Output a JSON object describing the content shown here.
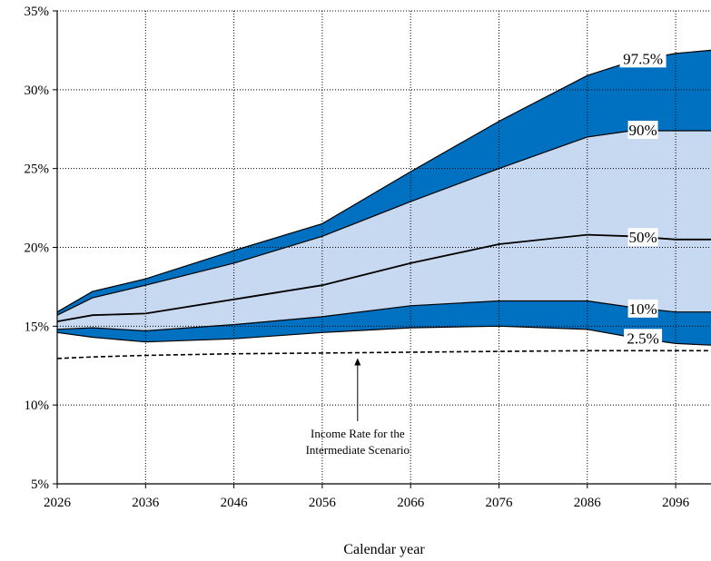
{
  "chart_data": {
    "type": "area",
    "xlabel": "Calendar year",
    "ylabel": "",
    "xlim": [
      2026,
      2100
    ],
    "ylim": [
      5,
      35
    ],
    "x_ticks": [
      2026,
      2036,
      2046,
      2056,
      2066,
      2076,
      2086,
      2096
    ],
    "x_tick_labels": [
      "2026",
      "2036",
      "2046",
      "2056",
      "2066",
      "2076",
      "2086",
      "2096"
    ],
    "y_ticks": [
      5,
      10,
      15,
      20,
      25,
      30,
      35
    ],
    "y_tick_labels": [
      "5%",
      "10%",
      "15%",
      "20%",
      "25%",
      "30%",
      "35%"
    ],
    "grid": true,
    "colors": {
      "outer_band": "#0070c0",
      "inner_band": "#c6d9f0",
      "lines": "#000000"
    },
    "x": [
      2026,
      2030,
      2036,
      2046,
      2056,
      2066,
      2076,
      2086,
      2091,
      2096,
      2100
    ],
    "series": [
      {
        "name": "97.5%",
        "values": [
          15.9,
          17.2,
          18.0,
          19.8,
          21.5,
          24.8,
          28.0,
          30.9,
          31.8,
          32.3,
          32.5
        ]
      },
      {
        "name": "90%",
        "values": [
          15.7,
          16.8,
          17.6,
          19.0,
          20.7,
          22.9,
          25.0,
          27.0,
          27.4,
          27.4,
          27.4
        ]
      },
      {
        "name": "50%",
        "values": [
          15.3,
          15.7,
          15.8,
          16.7,
          17.6,
          19.0,
          20.2,
          20.8,
          20.7,
          20.5,
          20.5
        ]
      },
      {
        "name": "10%",
        "values": [
          14.8,
          14.9,
          14.7,
          15.1,
          15.6,
          16.3,
          16.6,
          16.6,
          16.2,
          15.9,
          15.9
        ]
      },
      {
        "name": "2.5%",
        "values": [
          14.6,
          14.3,
          14.0,
          14.2,
          14.6,
          14.9,
          15.0,
          14.8,
          14.3,
          13.9,
          13.8
        ]
      },
      {
        "name": "Income Rate for the Intermediate Scenario",
        "values": [
          12.95,
          13.05,
          13.15,
          13.25,
          13.3,
          13.35,
          13.4,
          13.45,
          13.45,
          13.45,
          13.45
        ]
      }
    ],
    "band_labels": [
      "97.5%",
      "90%",
      "50%",
      "10%",
      "2.5%"
    ],
    "annotation": "Income Rate for the Intermediate Scenario",
    "annotation_lines": [
      "Income Rate for the",
      "Intermediate Scenario"
    ],
    "annotation_x": 2060
  }
}
